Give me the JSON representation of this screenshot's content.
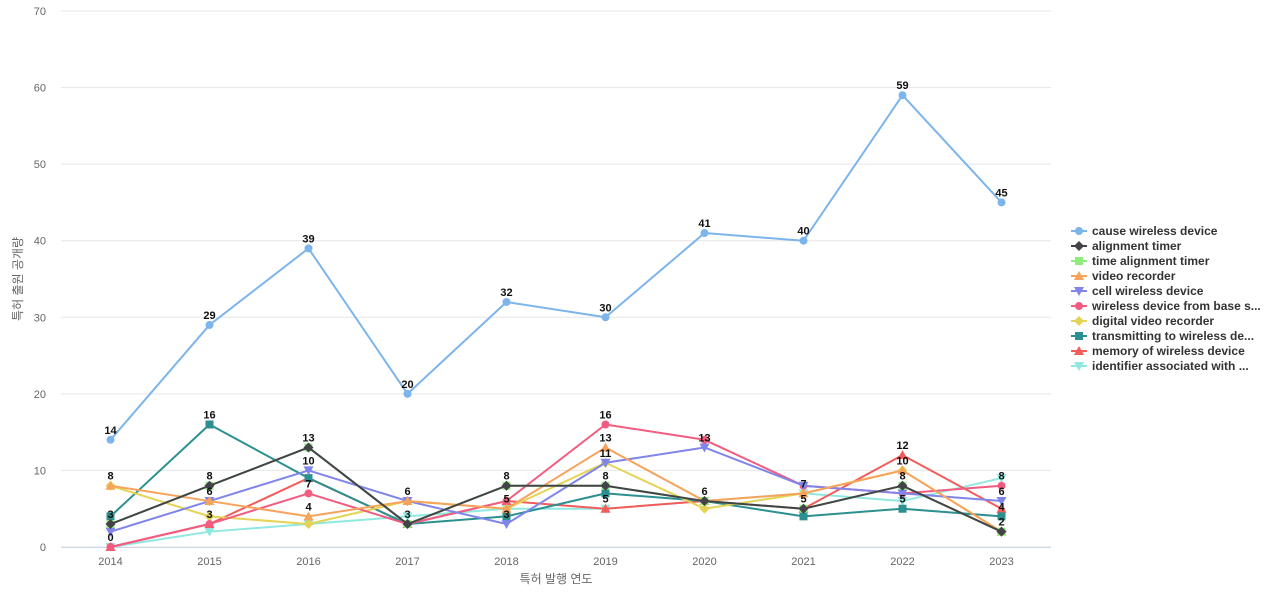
{
  "chart_data": {
    "type": "line",
    "title": "",
    "xlabel": "특허 발행 연도",
    "ylabel": "특허 출원 공개량",
    "ylim": [
      0,
      70
    ],
    "yticks": [
      0,
      10,
      20,
      30,
      40,
      50,
      60,
      70
    ],
    "grid": "horizontal",
    "legend_position": "right",
    "categories": [
      "2014",
      "2015",
      "2016",
      "2017",
      "2018",
      "2019",
      "2020",
      "2021",
      "2022",
      "2023"
    ],
    "series": [
      {
        "name": "cause wireless device",
        "color": "#7cb5ec",
        "marker": "circle",
        "labeled": true,
        "values": [
          14,
          29,
          39,
          20,
          32,
          30,
          41,
          40,
          59,
          45
        ]
      },
      {
        "name": "alignment timer",
        "color": "#434348",
        "marker": "diamond",
        "labeled": false,
        "values": [
          3,
          8,
          13,
          3,
          8,
          8,
          6,
          5,
          8,
          2
        ]
      },
      {
        "name": "time alignment timer",
        "color": "#90ed7d",
        "marker": "square",
        "labeled": true,
        "values": [
          3,
          8,
          13,
          3,
          8,
          8,
          6,
          5,
          8,
          2
        ]
      },
      {
        "name": "video recorder",
        "color": "#f7a35c",
        "marker": "triangle",
        "labeled": false,
        "values": [
          8,
          6,
          4,
          6,
          5,
          13,
          6,
          7,
          10,
          2
        ]
      },
      {
        "name": "cell wireless device",
        "color": "#8085e9",
        "marker": "triangle-down",
        "labeled": false,
        "values": [
          2,
          6,
          10,
          6,
          3,
          11,
          13,
          8,
          7,
          6
        ]
      },
      {
        "name": "wireless device from base s...",
        "color": "#f15c80",
        "marker": "circle",
        "labeled": false,
        "values": [
          0,
          3,
          7,
          3,
          6,
          16,
          14,
          8,
          7,
          8
        ]
      },
      {
        "name": "digital video recorder",
        "color": "#e4d354",
        "marker": "diamond",
        "labeled": false,
        "values": [
          8,
          4,
          3,
          6,
          5,
          11,
          5,
          7,
          10,
          2
        ]
      },
      {
        "name": "transmitting to wireless de...",
        "color": "#2b908f",
        "marker": "square",
        "labeled": false,
        "values": [
          4,
          16,
          9,
          3,
          4,
          7,
          6,
          4,
          5,
          4
        ]
      },
      {
        "name": "memory of wireless device",
        "color": "#f45b5b",
        "marker": "triangle",
        "labeled": false,
        "values": [
          0,
          3,
          9,
          3,
          6,
          5,
          6,
          5,
          12,
          5
        ]
      },
      {
        "name": "identifier associated with ...",
        "color": "#91e8e1",
        "marker": "triangle-down",
        "labeled": false,
        "values": [
          0,
          2,
          3,
          4,
          5,
          5,
          6,
          7,
          6,
          9
        ]
      }
    ],
    "data_labels": [
      {
        "x": "2014",
        "y": 14,
        "text": "14"
      },
      {
        "x": "2014",
        "y": 8,
        "text": "8"
      },
      {
        "x": "2014",
        "y": 3,
        "text": "3"
      },
      {
        "x": "2014",
        "y": 0,
        "text": "0"
      },
      {
        "x": "2015",
        "y": 29,
        "text": "29"
      },
      {
        "x": "2015",
        "y": 16,
        "text": "16"
      },
      {
        "x": "2015",
        "y": 8,
        "text": "8"
      },
      {
        "x": "2015",
        "y": 6,
        "text": "6"
      },
      {
        "x": "2015",
        "y": 3,
        "text": "3"
      },
      {
        "x": "2016",
        "y": 39,
        "text": "39"
      },
      {
        "x": "2016",
        "y": 13,
        "text": "13"
      },
      {
        "x": "2016",
        "y": 10,
        "text": "10"
      },
      {
        "x": "2016",
        "y": 7,
        "text": "7"
      },
      {
        "x": "2016",
        "y": 4,
        "text": "4"
      },
      {
        "x": "2017",
        "y": 20,
        "text": "20"
      },
      {
        "x": "2017",
        "y": 6,
        "text": "6"
      },
      {
        "x": "2017",
        "y": 3,
        "text": "3"
      },
      {
        "x": "2018",
        "y": 32,
        "text": "32"
      },
      {
        "x": "2018",
        "y": 8,
        "text": "8"
      },
      {
        "x": "2018",
        "y": 5,
        "text": "5"
      },
      {
        "x": "2018",
        "y": 3,
        "text": "3"
      },
      {
        "x": "2019",
        "y": 30,
        "text": "30"
      },
      {
        "x": "2019",
        "y": 16,
        "text": "16"
      },
      {
        "x": "2019",
        "y": 13,
        "text": "13"
      },
      {
        "x": "2019",
        "y": 11,
        "text": "11"
      },
      {
        "x": "2019",
        "y": 8,
        "text": "8"
      },
      {
        "x": "2019",
        "y": 5,
        "text": "5"
      },
      {
        "x": "2020",
        "y": 41,
        "text": "41"
      },
      {
        "x": "2020",
        "y": 13,
        "text": "13"
      },
      {
        "x": "2020",
        "y": 6,
        "text": "6"
      },
      {
        "x": "2021",
        "y": 40,
        "text": "40"
      },
      {
        "x": "2021",
        "y": 7,
        "text": "7"
      },
      {
        "x": "2021",
        "y": 5,
        "text": "5"
      },
      {
        "x": "2022",
        "y": 59,
        "text": "59"
      },
      {
        "x": "2022",
        "y": 12,
        "text": "12"
      },
      {
        "x": "2022",
        "y": 10,
        "text": "10"
      },
      {
        "x": "2022",
        "y": 8,
        "text": "8"
      },
      {
        "x": "2022",
        "y": 5,
        "text": "5"
      },
      {
        "x": "2023",
        "y": 45,
        "text": "45"
      },
      {
        "x": "2023",
        "y": 8,
        "text": "8"
      },
      {
        "x": "2023",
        "y": 6,
        "text": "6"
      },
      {
        "x": "2023",
        "y": 4,
        "text": "4"
      },
      {
        "x": "2023",
        "y": 2,
        "text": "2"
      }
    ]
  }
}
